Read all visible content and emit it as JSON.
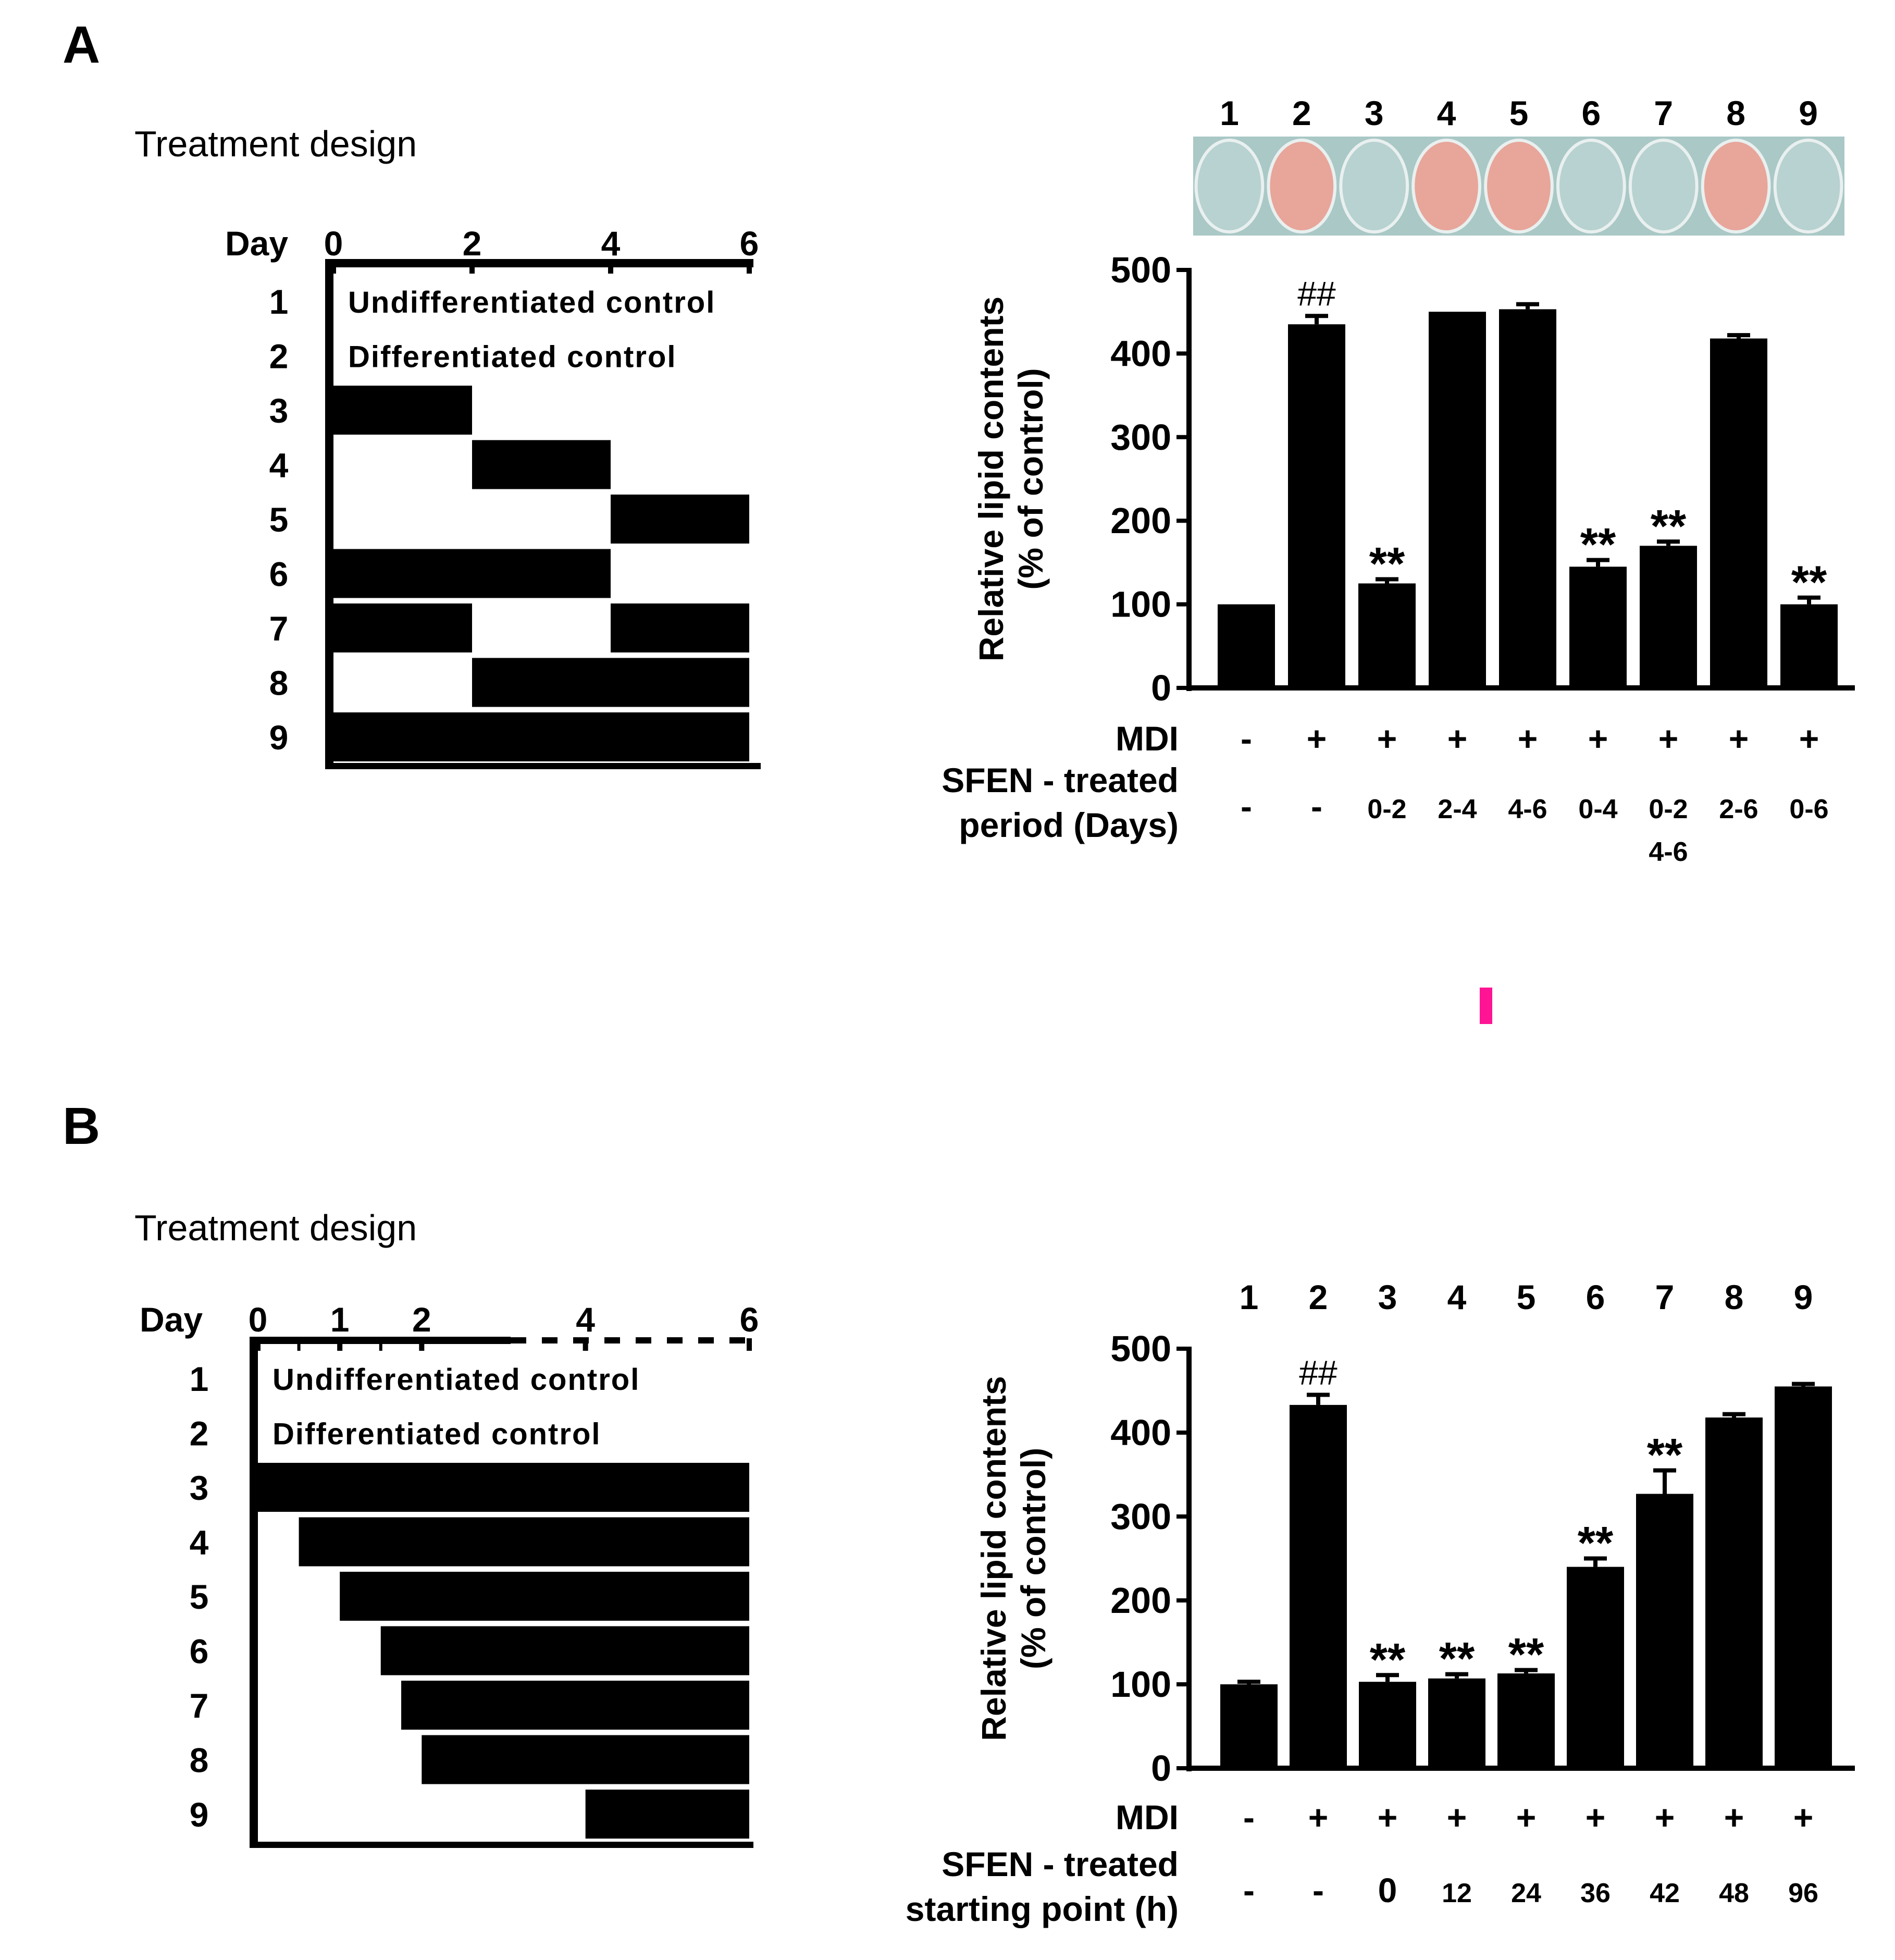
{
  "panels": [
    {
      "letter": "A",
      "design": {
        "title": "Treatment design",
        "day_label": "Day",
        "day_ticks": [
          "0",
          "2",
          "4",
          "6"
        ],
        "tick_days": [
          0,
          2,
          4,
          6
        ],
        "rows": [
          "1",
          "2",
          "3",
          "4",
          "5",
          "6",
          "7",
          "8",
          "9"
        ],
        "row_texts": [
          {
            "row": 1,
            "text": "Undifferentiated control"
          },
          {
            "row": 2,
            "text": "Differentiated control"
          }
        ],
        "row_bars": [
          [],
          [],
          [
            [
              0,
              2
            ]
          ],
          [
            [
              2,
              4
            ]
          ],
          [
            [
              4,
              6
            ]
          ],
          [
            [
              0,
              4
            ]
          ],
          [
            [
              0,
              2
            ],
            [
              4,
              6
            ]
          ],
          [
            [
              2,
              6
            ]
          ],
          [
            [
              0,
              6
            ]
          ]
        ]
      },
      "well_strip": {
        "labels": [
          "1",
          "2",
          "3",
          "4",
          "5",
          "6",
          "7",
          "8",
          "9"
        ],
        "stained": [
          false,
          true,
          false,
          true,
          true,
          false,
          false,
          true,
          false
        ],
        "colors": {
          "stained": "#e8a59a",
          "unstained": "#b7d2d0"
        }
      },
      "rows_below": [
        {
          "label": "MDI",
          "values": [
            "-",
            "+",
            "+",
            "+",
            "+",
            "+",
            "+",
            "+",
            "+"
          ]
        },
        {
          "label": [
            "SFEN - treated",
            "period (Days)"
          ],
          "values": [
            "-",
            "-",
            "0-2",
            "2-4",
            "4-6",
            "0-4",
            "0-2\n4-6",
            "2-6",
            "0-6"
          ]
        }
      ]
    },
    {
      "letter": "B",
      "design": {
        "title": "Treatment design",
        "day_label": "Day",
        "day_ticks": [
          "0",
          "1",
          "2",
          "4",
          "6"
        ],
        "tick_days": [
          0,
          1,
          2,
          4,
          6
        ],
        "rows": [
          "1",
          "2",
          "3",
          "4",
          "5",
          "6",
          "7",
          "8",
          "9"
        ],
        "row_texts": [
          {
            "row": 1,
            "text": "Undifferentiated control"
          },
          {
            "row": 2,
            "text": "Differentiated control"
          }
        ],
        "row_bars": [
          [],
          [],
          [
            [
              0,
              6
            ]
          ],
          [
            [
              0.5,
              6
            ]
          ],
          [
            [
              1,
              6
            ]
          ],
          [
            [
              1.5,
              6
            ]
          ],
          [
            [
              1.75,
              6
            ]
          ],
          [
            [
              2,
              6
            ]
          ],
          [
            [
              4,
              6
            ]
          ]
        ]
      },
      "column_labels": [
        "1",
        "2",
        "3",
        "4",
        "5",
        "6",
        "7",
        "8",
        "9"
      ],
      "rows_below": [
        {
          "label": "MDI",
          "values": [
            "-",
            "+",
            "+",
            "+",
            "+",
            "+",
            "+",
            "+",
            "+"
          ]
        },
        {
          "label": [
            "SFEN - treated",
            "starting point (h)"
          ],
          "values": [
            "-",
            "-",
            "0",
            "12",
            "24",
            "36",
            "42",
            "48",
            "96"
          ]
        }
      ]
    }
  ],
  "chart_data": [
    {
      "type": "bar",
      "categories": [
        "1",
        "2",
        "3",
        "4",
        "5",
        "6",
        "7",
        "8",
        "9"
      ],
      "values": [
        100,
        435,
        125,
        450,
        453,
        145,
        170,
        418,
        100
      ],
      "errors": [
        0,
        10,
        5,
        0,
        6,
        8,
        5,
        4,
        8
      ],
      "annotations": [
        "",
        "##",
        "**",
        "",
        "",
        "**",
        "**",
        "",
        "**"
      ],
      "ylabel": [
        "Relative lipid contents",
        "(% of control)"
      ],
      "ylim": [
        0,
        500
      ],
      "yticks": [
        0,
        100,
        200,
        300,
        400,
        500
      ],
      "bar_color": "#000000"
    },
    {
      "type": "bar",
      "categories": [
        "1",
        "2",
        "3",
        "4",
        "5",
        "6",
        "7",
        "8",
        "9"
      ],
      "values": [
        100,
        433,
        103,
        107,
        113,
        240,
        327,
        418,
        455
      ],
      "errors": [
        3,
        12,
        8,
        5,
        4,
        10,
        28,
        4,
        3
      ],
      "annotations": [
        "",
        "##",
        "**",
        "**",
        "**",
        "**",
        "**",
        "",
        ""
      ],
      "ylabel": [
        "Relative lipid contents",
        "(% of control)"
      ],
      "ylim": [
        0,
        500
      ],
      "yticks": [
        0,
        100,
        200,
        300,
        400,
        500
      ],
      "bar_color": "#000000"
    }
  ],
  "marker": {
    "color": "#ff1493"
  }
}
